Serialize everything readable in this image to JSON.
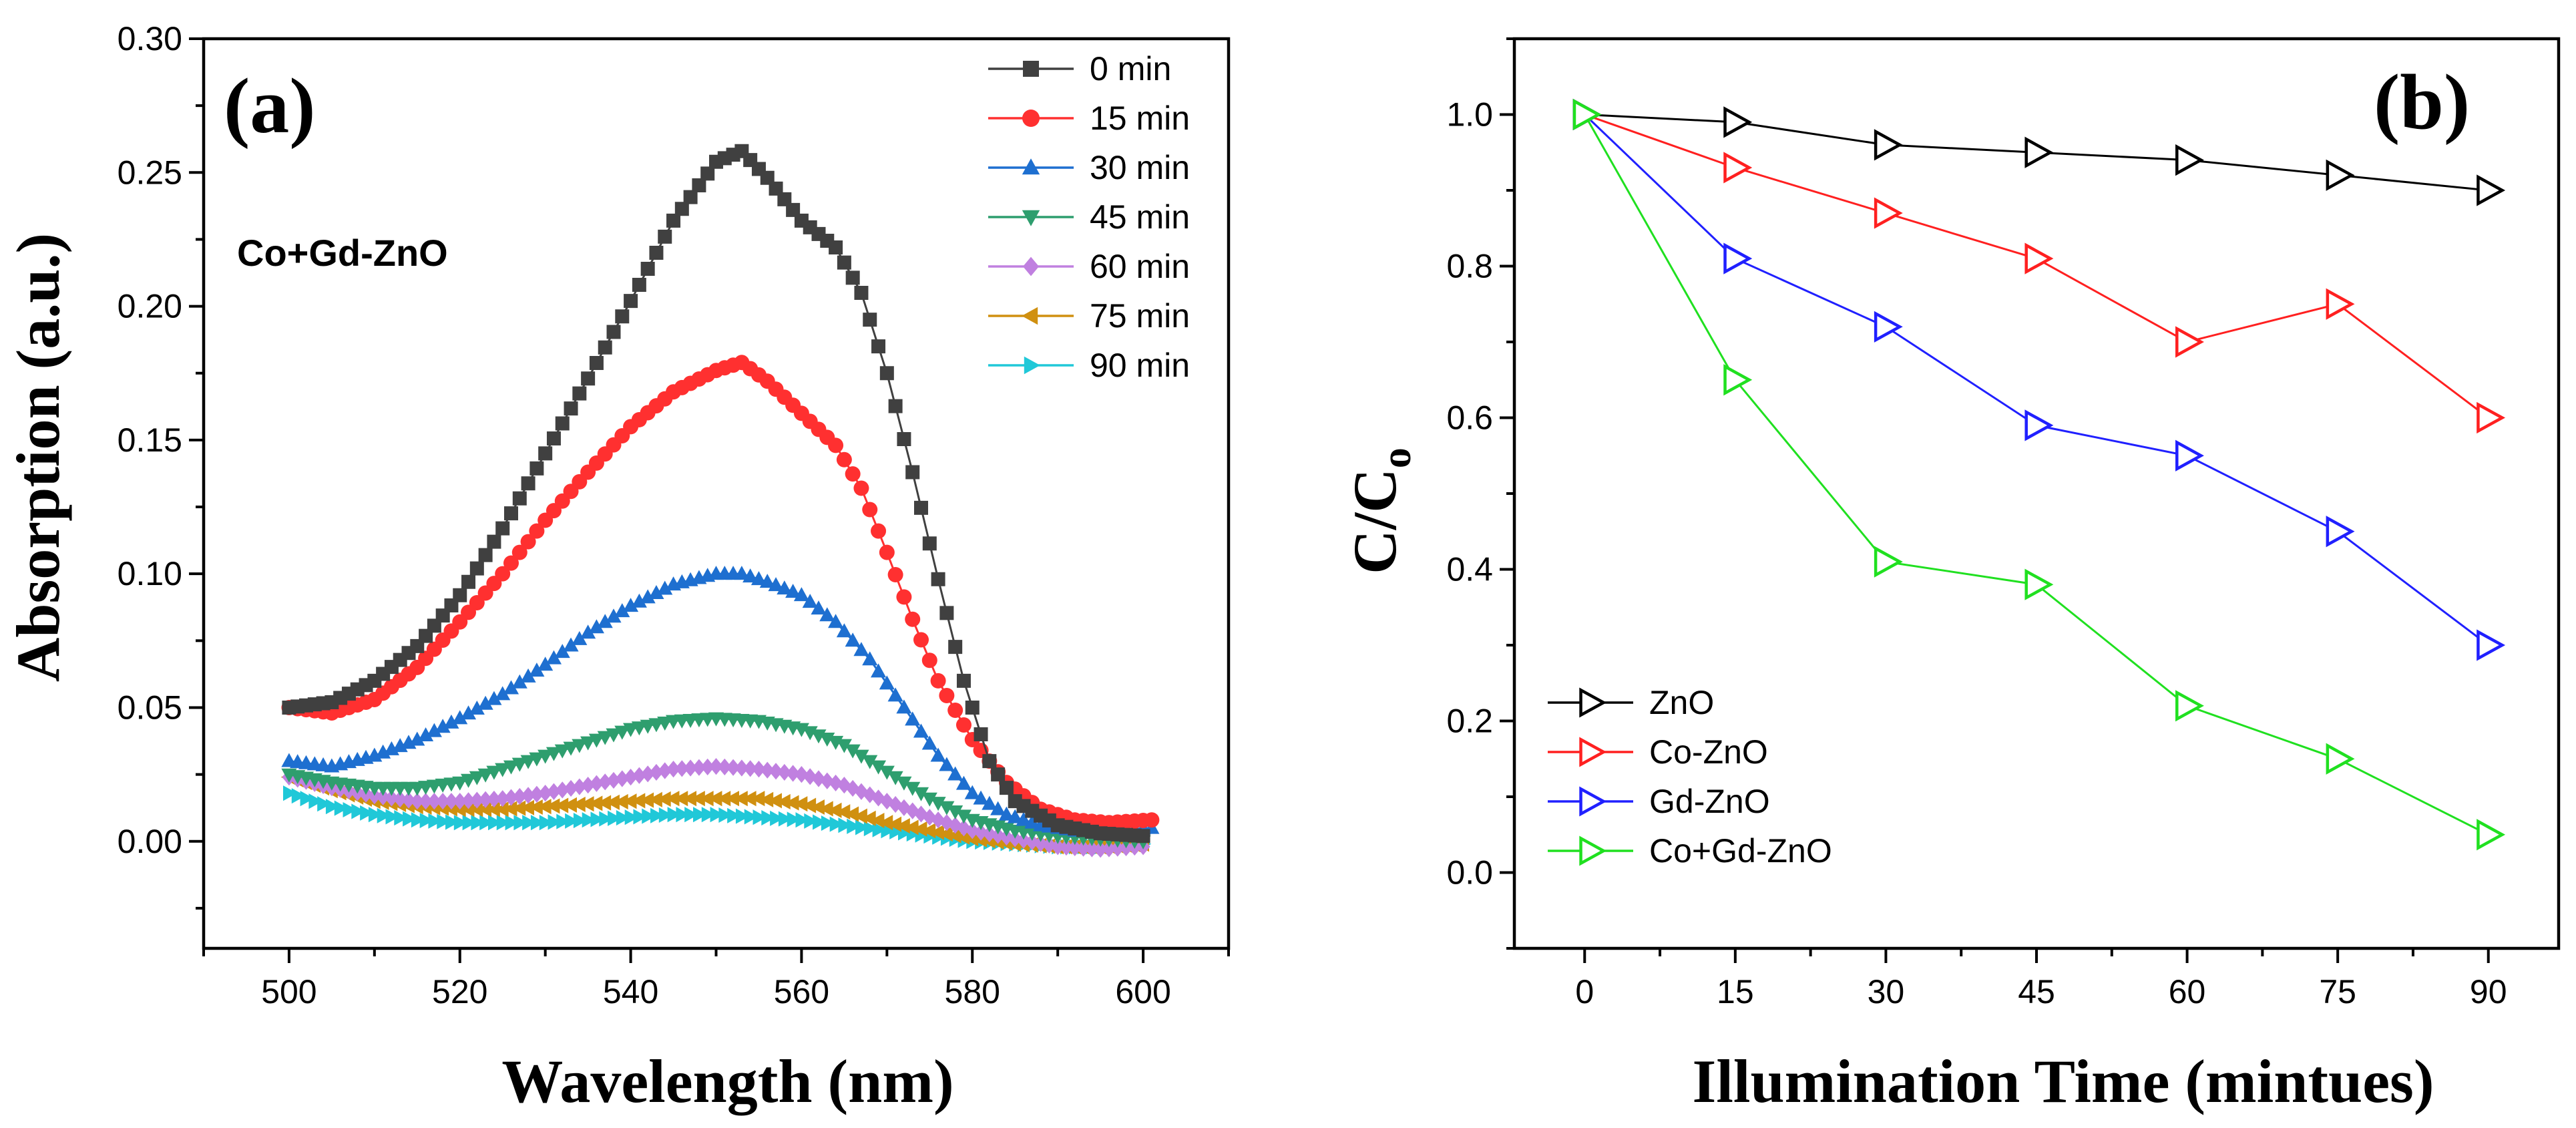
{
  "chart_data": [
    {
      "panel": "(a)",
      "type": "line",
      "annotation": "Co+Gd-ZnO",
      "xlabel": "Wavelength (nm)",
      "ylabel": "Absorption (a.u.)",
      "xlim": [
        490,
        610
      ],
      "ylim": [
        -0.04,
        0.3
      ],
      "xticks": [
        500,
        520,
        540,
        560,
        580,
        600
      ],
      "yticks": [
        0.0,
        0.05,
        0.1,
        0.15,
        0.2,
        0.25,
        0.3
      ],
      "xtick_labels": [
        "500",
        "520",
        "540",
        "560",
        "580",
        "600"
      ],
      "ytick_labels": [
        "0.00",
        "0.05",
        "0.10",
        "0.15",
        "0.20",
        "0.25",
        "0.30"
      ],
      "legend_position": "top-right",
      "series": [
        {
          "name": "0 min",
          "color": "#404040",
          "marker": "square",
          "x": [
            500,
            505,
            510,
            515,
            520,
            525,
            530,
            535,
            540,
            545,
            550,
            553,
            556,
            560,
            564,
            567,
            570,
            573,
            576,
            579,
            582,
            585,
            590,
            595,
            600
          ],
          "y": [
            0.05,
            0.052,
            0.06,
            0.073,
            0.092,
            0.117,
            0.145,
            0.173,
            0.202,
            0.232,
            0.254,
            0.258,
            0.248,
            0.232,
            0.222,
            0.205,
            0.175,
            0.138,
            0.098,
            0.06,
            0.03,
            0.015,
            0.006,
            0.003,
            0.002
          ]
        },
        {
          "name": "15 min",
          "color": "#ff3030",
          "marker": "circle",
          "x": [
            500,
            505,
            510,
            515,
            520,
            525,
            530,
            535,
            540,
            545,
            550,
            553,
            556,
            560,
            564,
            567,
            570,
            573,
            576,
            580,
            584,
            588,
            592,
            596,
            601
          ],
          "y": [
            0.05,
            0.048,
            0.053,
            0.065,
            0.082,
            0.1,
            0.12,
            0.138,
            0.155,
            0.168,
            0.176,
            0.179,
            0.172,
            0.16,
            0.148,
            0.132,
            0.108,
            0.083,
            0.06,
            0.038,
            0.022,
            0.012,
            0.008,
            0.007,
            0.008
          ]
        },
        {
          "name": "30 min",
          "color": "#1e6fd0",
          "marker": "triangle-up",
          "x": [
            500,
            505,
            510,
            515,
            520,
            525,
            530,
            535,
            540,
            545,
            550,
            553,
            556,
            560,
            564,
            568,
            572,
            576,
            580,
            584,
            588,
            592,
            596,
            601
          ],
          "y": [
            0.03,
            0.028,
            0.032,
            0.038,
            0.046,
            0.055,
            0.066,
            0.078,
            0.088,
            0.096,
            0.1,
            0.1,
            0.097,
            0.092,
            0.082,
            0.068,
            0.05,
            0.032,
            0.018,
            0.01,
            0.006,
            0.004,
            0.004,
            0.005
          ]
        },
        {
          "name": "45 min",
          "color": "#2e9e6e",
          "marker": "triangle-down",
          "x": [
            500,
            505,
            510,
            515,
            520,
            525,
            530,
            535,
            540,
            545,
            550,
            555,
            560,
            565,
            570,
            575,
            580,
            585,
            590,
            595,
            600
          ],
          "y": [
            0.025,
            0.022,
            0.02,
            0.02,
            0.022,
            0.027,
            0.032,
            0.037,
            0.042,
            0.045,
            0.046,
            0.045,
            0.042,
            0.036,
            0.026,
            0.016,
            0.008,
            0.004,
            0.002,
            0.001,
            0.0
          ]
        },
        {
          "name": "60 min",
          "color": "#c080e0",
          "marker": "diamond",
          "x": [
            500,
            505,
            510,
            515,
            520,
            525,
            530,
            535,
            540,
            545,
            550,
            555,
            560,
            565,
            570,
            575,
            580,
            585,
            590,
            595,
            600
          ],
          "y": [
            0.024,
            0.02,
            0.017,
            0.015,
            0.015,
            0.016,
            0.018,
            0.021,
            0.024,
            0.027,
            0.028,
            0.027,
            0.025,
            0.021,
            0.015,
            0.009,
            0.004,
            0.001,
            -0.002,
            -0.003,
            -0.002
          ]
        },
        {
          "name": "75 min",
          "color": "#d09010",
          "marker": "triangle-left",
          "x": [
            500,
            505,
            510,
            515,
            520,
            525,
            530,
            535,
            540,
            545,
            550,
            555,
            560,
            565,
            570,
            575,
            580,
            585,
            590,
            595,
            600
          ],
          "y": [
            0.024,
            0.019,
            0.015,
            0.013,
            0.012,
            0.012,
            0.013,
            0.014,
            0.015,
            0.016,
            0.016,
            0.016,
            0.014,
            0.011,
            0.007,
            0.004,
            0.001,
            -0.001,
            -0.002,
            -0.002,
            -0.001
          ]
        },
        {
          "name": "90 min",
          "color": "#20c8d8",
          "marker": "triangle-right",
          "x": [
            500,
            505,
            510,
            515,
            520,
            525,
            530,
            535,
            540,
            545,
            550,
            555,
            560,
            565,
            570,
            575,
            580,
            585,
            590,
            595,
            600
          ],
          "y": [
            0.018,
            0.013,
            0.01,
            0.008,
            0.007,
            0.007,
            0.007,
            0.008,
            0.009,
            0.01,
            0.01,
            0.009,
            0.008,
            0.006,
            0.004,
            0.002,
            0.0,
            -0.001,
            -0.002,
            -0.002,
            -0.001
          ]
        }
      ]
    },
    {
      "panel": "(b)",
      "type": "line",
      "xlabel": "Illumination Time (mintues)",
      "ylabel_main": "C/C",
      "ylabel_sub": "o",
      "xlim": [
        -7,
        97
      ],
      "ylim": [
        -0.1,
        1.1
      ],
      "xticks": [
        0,
        15,
        30,
        45,
        60,
        75,
        90
      ],
      "yticks": [
        0.0,
        0.2,
        0.4,
        0.6,
        0.8,
        1.0
      ],
      "xtick_labels": [
        "0",
        "15",
        "30",
        "45",
        "60",
        "75",
        "90"
      ],
      "ytick_labels": [
        "0.0",
        "0.2",
        "0.4",
        "0.6",
        "0.8",
        "1.0"
      ],
      "legend_position": "bottom-left",
      "series": [
        {
          "name": "ZnO",
          "color": "#000000",
          "marker": "triangle-right",
          "x": [
            0,
            15,
            30,
            45,
            60,
            75,
            90
          ],
          "y": [
            1.0,
            0.99,
            0.96,
            0.95,
            0.94,
            0.92,
            0.9
          ]
        },
        {
          "name": "Co-ZnO",
          "color": "#ff2020",
          "marker": "triangle-right",
          "x": [
            0,
            15,
            30,
            45,
            60,
            75,
            90
          ],
          "y": [
            1.0,
            0.93,
            0.87,
            0.81,
            0.7,
            0.75,
            0.6
          ]
        },
        {
          "name": "Gd-ZnO",
          "color": "#2020ff",
          "marker": "triangle-right",
          "x": [
            0,
            15,
            30,
            45,
            60,
            75,
            90
          ],
          "y": [
            1.0,
            0.81,
            0.72,
            0.59,
            0.55,
            0.45,
            0.3
          ]
        },
        {
          "name": "Co+Gd-ZnO",
          "color": "#20e020",
          "marker": "triangle-right",
          "x": [
            0,
            15,
            30,
            45,
            60,
            75,
            90
          ],
          "y": [
            1.0,
            0.65,
            0.41,
            0.38,
            0.22,
            0.15,
            0.05
          ]
        }
      ]
    }
  ]
}
